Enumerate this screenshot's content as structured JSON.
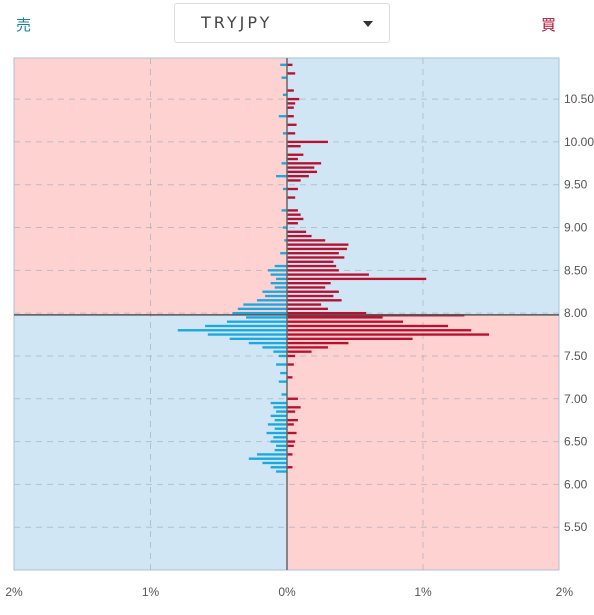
{
  "header": {
    "sell_label": "売",
    "buy_label": "買",
    "pair": "TRYJPY"
  },
  "colors": {
    "sell_bar": "#1aa8e0",
    "buy_bar": "#b8102e",
    "bg_pink": "#ffd2d2",
    "bg_blue": "#d0e6f4"
  },
  "chart_data": {
    "type": "bar",
    "orientation": "horizontal",
    "current_price": 7.98,
    "ylim": [
      5.0,
      10.98
    ],
    "xlim": [
      -2,
      2
    ],
    "price_ticks": [
      "10.50",
      "10.00",
      "9.50",
      "9.00",
      "8.50",
      "8.00",
      "7.50",
      "7.00",
      "6.50",
      "6.00",
      "5.50"
    ],
    "x_ticks": [
      "2%",
      "1%",
      "0%",
      "1%",
      "2%"
    ],
    "price_step": 0.05,
    "series": [
      {
        "name": "売",
        "points": [
          [
            10.9,
            0.05
          ],
          [
            10.75,
            0.04
          ],
          [
            10.55,
            0.03
          ],
          [
            10.3,
            0.06
          ],
          [
            10.1,
            0.03
          ],
          [
            9.75,
            0.04
          ],
          [
            9.6,
            0.08
          ],
          [
            9.45,
            0.03
          ],
          [
            9.2,
            0.04
          ],
          [
            9.0,
            0.03
          ],
          [
            8.85,
            0.02
          ],
          [
            8.7,
            0.05
          ],
          [
            8.55,
            0.09
          ],
          [
            8.5,
            0.14
          ],
          [
            8.45,
            0.12
          ],
          [
            8.4,
            0.08
          ],
          [
            8.35,
            0.12
          ],
          [
            8.3,
            0.09
          ],
          [
            8.25,
            0.18
          ],
          [
            8.2,
            0.16
          ],
          [
            8.15,
            0.22
          ],
          [
            8.1,
            0.32
          ],
          [
            8.05,
            0.36
          ],
          [
            8.0,
            0.4
          ],
          [
            7.95,
            0.3
          ],
          [
            7.9,
            0.44
          ],
          [
            7.85,
            0.6
          ],
          [
            7.8,
            0.8
          ],
          [
            7.75,
            0.58
          ],
          [
            7.7,
            0.42
          ],
          [
            7.65,
            0.28
          ],
          [
            7.6,
            0.18
          ],
          [
            7.55,
            0.1
          ],
          [
            7.5,
            0.06
          ],
          [
            7.4,
            0.08
          ],
          [
            7.3,
            0.05
          ],
          [
            7.2,
            0.06
          ],
          [
            7.05,
            0.04
          ],
          [
            6.95,
            0.12
          ],
          [
            6.9,
            0.1
          ],
          [
            6.85,
            0.08
          ],
          [
            6.8,
            0.12
          ],
          [
            6.75,
            0.09
          ],
          [
            6.7,
            0.14
          ],
          [
            6.65,
            0.09
          ],
          [
            6.6,
            0.15
          ],
          [
            6.55,
            0.1
          ],
          [
            6.5,
            0.12
          ],
          [
            6.45,
            0.08
          ],
          [
            6.4,
            0.09
          ],
          [
            6.35,
            0.22
          ],
          [
            6.3,
            0.28
          ],
          [
            6.25,
            0.18
          ],
          [
            6.2,
            0.12
          ],
          [
            6.15,
            0.08
          ]
        ]
      },
      {
        "name": "買",
        "points": [
          [
            10.9,
            0.04
          ],
          [
            10.8,
            0.06
          ],
          [
            10.6,
            0.05
          ],
          [
            10.5,
            0.09
          ],
          [
            10.45,
            0.06
          ],
          [
            10.4,
            0.05
          ],
          [
            10.3,
            0.05
          ],
          [
            10.2,
            0.07
          ],
          [
            10.1,
            0.06
          ],
          [
            10.0,
            0.3
          ],
          [
            9.95,
            0.1
          ],
          [
            9.85,
            0.12
          ],
          [
            9.8,
            0.08
          ],
          [
            9.75,
            0.25
          ],
          [
            9.7,
            0.2
          ],
          [
            9.65,
            0.22
          ],
          [
            9.6,
            0.16
          ],
          [
            9.55,
            0.1
          ],
          [
            9.45,
            0.08
          ],
          [
            9.35,
            0.06
          ],
          [
            9.2,
            0.08
          ],
          [
            9.15,
            0.1
          ],
          [
            9.1,
            0.12
          ],
          [
            9.05,
            0.08
          ],
          [
            8.95,
            0.14
          ],
          [
            8.9,
            0.18
          ],
          [
            8.85,
            0.28
          ],
          [
            8.8,
            0.45
          ],
          [
            8.75,
            0.44
          ],
          [
            8.7,
            0.38
          ],
          [
            8.65,
            0.42
          ],
          [
            8.6,
            0.34
          ],
          [
            8.55,
            0.36
          ],
          [
            8.5,
            0.38
          ],
          [
            8.45,
            0.6
          ],
          [
            8.4,
            1.02
          ],
          [
            8.35,
            0.32
          ],
          [
            8.3,
            0.28
          ],
          [
            8.25,
            0.38
          ],
          [
            8.2,
            0.34
          ],
          [
            8.15,
            0.4
          ],
          [
            8.1,
            0.25
          ],
          [
            8.05,
            0.3
          ],
          [
            8.0,
            0.58
          ],
          [
            7.975,
            1.3
          ],
          [
            7.95,
            0.7
          ],
          [
            7.9,
            0.85
          ],
          [
            7.85,
            1.18
          ],
          [
            7.8,
            1.35
          ],
          [
            7.75,
            1.48
          ],
          [
            7.7,
            0.92
          ],
          [
            7.65,
            0.45
          ],
          [
            7.6,
            0.3
          ],
          [
            7.55,
            0.18
          ],
          [
            7.5,
            0.06
          ],
          [
            7.4,
            0.05
          ],
          [
            7.25,
            0.04
          ],
          [
            7.0,
            0.08
          ],
          [
            6.9,
            0.1
          ],
          [
            6.85,
            0.06
          ],
          [
            6.75,
            0.08
          ],
          [
            6.7,
            0.05
          ],
          [
            6.6,
            0.07
          ],
          [
            6.5,
            0.06
          ],
          [
            6.45,
            0.05
          ],
          [
            6.35,
            0.04
          ],
          [
            6.2,
            0.04
          ]
        ]
      }
    ],
    "grid": true
  }
}
